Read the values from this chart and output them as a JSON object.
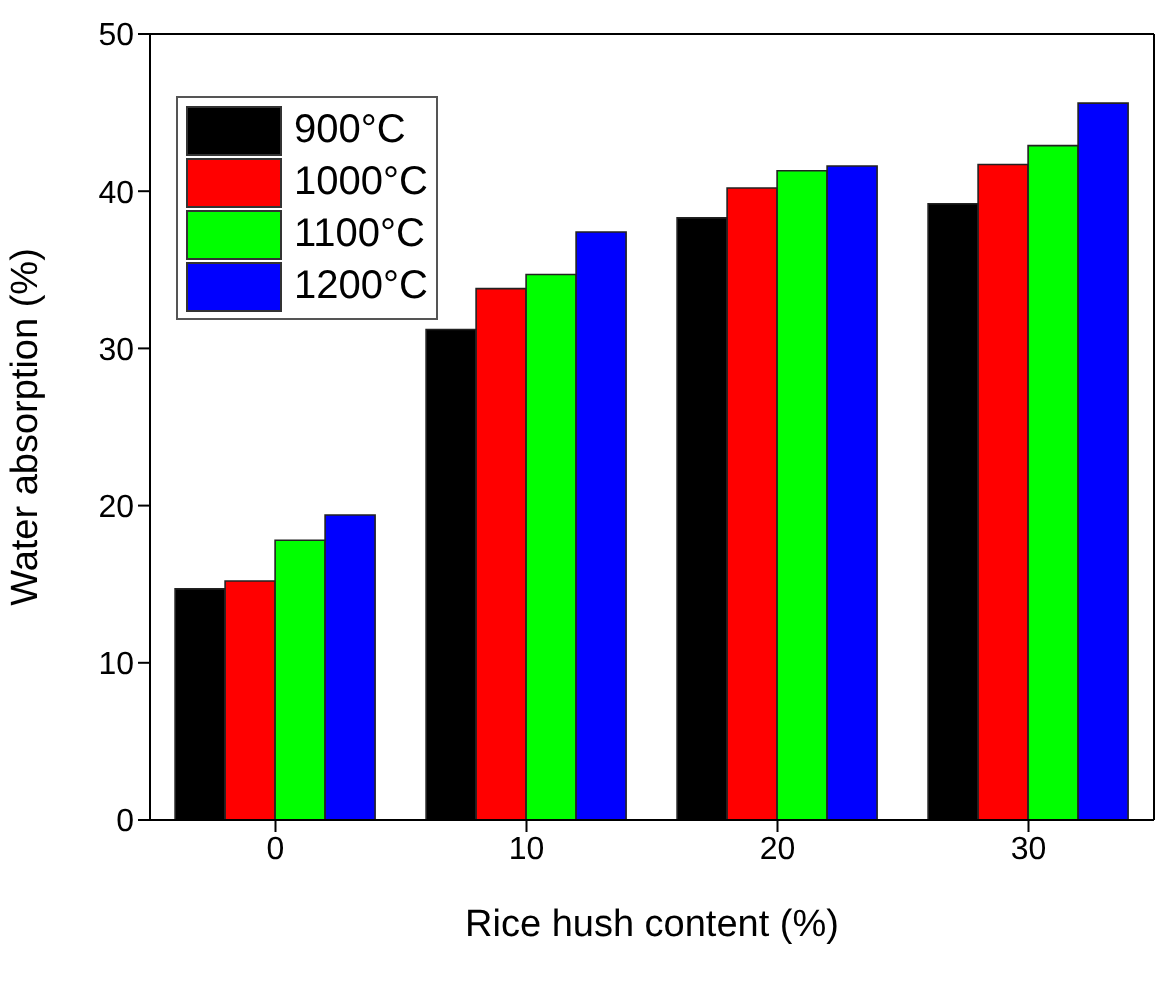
{
  "chart_data": {
    "type": "bar",
    "xlabel": "Rice hush content (%)",
    "ylabel": "Water absorption (%)",
    "categories": [
      "0",
      "10",
      "20",
      "30"
    ],
    "series": [
      {
        "name": "900°C",
        "color": "#000000",
        "values": [
          14.7,
          31.2,
          38.3,
          39.2
        ]
      },
      {
        "name": "1000°C",
        "color": "#ff0000",
        "values": [
          15.2,
          33.8,
          40.2,
          41.7
        ]
      },
      {
        "name": "1100°C",
        "color": "#00ff00",
        "values": [
          17.8,
          34.7,
          41.3,
          42.9
        ]
      },
      {
        "name": "1200°C",
        "color": "#0000ff",
        "values": [
          19.4,
          37.4,
          41.6,
          45.6
        ]
      }
    ],
    "ylim": [
      0,
      50
    ],
    "yticks": [
      0,
      10,
      20,
      30,
      40,
      50
    ],
    "grid": false,
    "legend": "top left"
  }
}
